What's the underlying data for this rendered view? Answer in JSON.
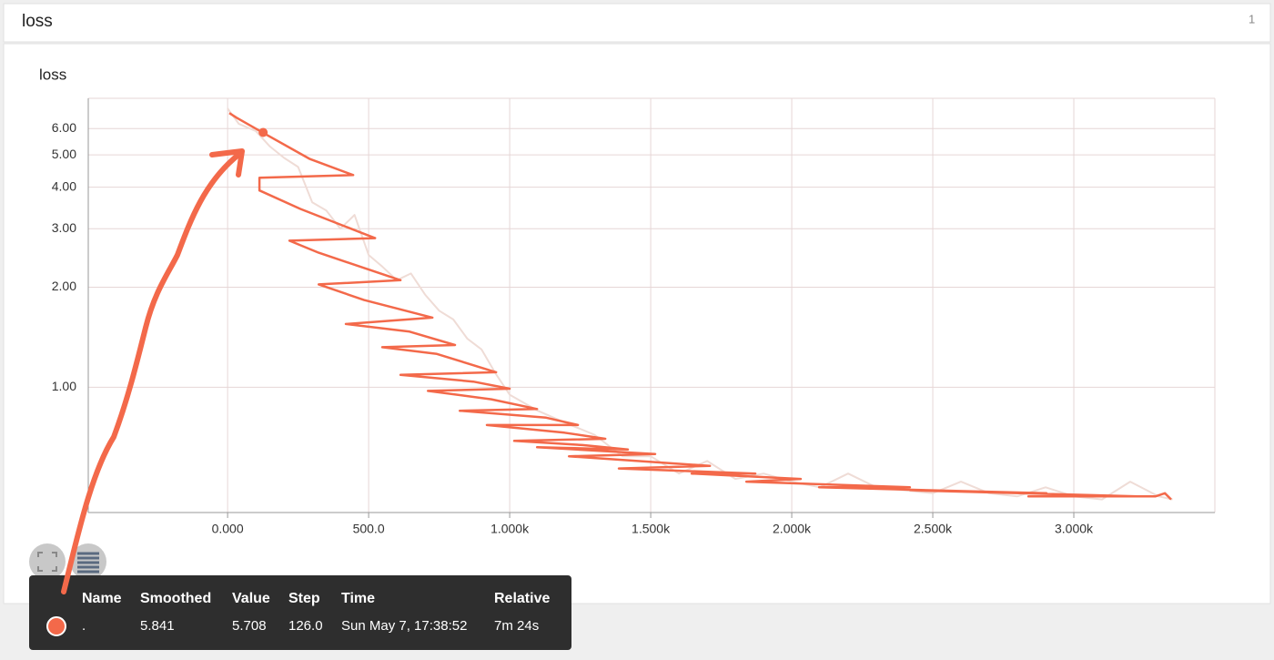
{
  "header": {
    "title": "loss",
    "count": "1"
  },
  "chart_data": {
    "type": "line",
    "title": "loss",
    "log_y": true,
    "grid": true,
    "xlim": [
      -494,
      3500
    ],
    "xticks": [
      {
        "value": 0,
        "label": "0.000"
      },
      {
        "value": 500,
        "label": "500.0"
      },
      {
        "value": 1000,
        "label": "1.000k"
      },
      {
        "value": 1500,
        "label": "1.500k"
      },
      {
        "value": 2000,
        "label": "2.000k"
      },
      {
        "value": 2500,
        "label": "2.500k"
      },
      {
        "value": 3000,
        "label": "3.000k"
      }
    ],
    "ylim": [
      0.42,
      7.4
    ],
    "yticks": [
      {
        "value": 1,
        "label": "1.00"
      },
      {
        "value": 2,
        "label": "2.00"
      },
      {
        "value": 3,
        "label": "3.00"
      },
      {
        "value": 4,
        "label": "4.00"
      },
      {
        "value": 5,
        "label": "5.00"
      },
      {
        "value": 6,
        "label": "6.00"
      }
    ],
    "series": [
      {
        "color": "#efdcd6",
        "x": [
          0,
          40,
          100,
          150,
          200,
          250,
          300,
          350,
          400,
          450,
          500,
          550,
          600,
          650,
          700,
          750,
          800,
          850,
          900,
          950,
          1000,
          1100,
          1200,
          1300,
          1400,
          1500,
          1600,
          1700,
          1800,
          1900,
          2000,
          2100,
          2200,
          2300,
          2400,
          2500,
          2600,
          2700,
          2800,
          2900,
          3000,
          3100,
          3200,
          3300,
          3350
        ],
        "values": [
          6.9,
          6.2,
          5.9,
          5.3,
          4.9,
          4.6,
          3.6,
          3.4,
          3.0,
          3.3,
          2.5,
          2.3,
          2.1,
          2.2,
          1.9,
          1.7,
          1.6,
          1.4,
          1.3,
          1.1,
          0.95,
          0.85,
          0.78,
          0.72,
          0.62,
          0.62,
          0.55,
          0.6,
          0.53,
          0.55,
          0.52,
          0.5,
          0.55,
          0.5,
          0.49,
          0.48,
          0.52,
          0.48,
          0.47,
          0.5,
          0.47,
          0.46,
          0.52,
          0.47,
          0.46
        ]
      },
      {
        "color": "#f3694a",
        "x": [
          6,
          32,
          129,
          290,
          445,
          113,
          113,
          258,
          523,
          219,
          323,
          613,
          323,
          484,
          726,
          419,
          645,
          806,
          548,
          742,
          952,
          613,
          871,
          1000,
          710,
          935,
          1097,
          823,
          1129,
          1242,
          919,
          1194,
          1339,
          1016,
          1258,
          1419,
          1097,
          1516,
          1210,
          1710,
          1387,
          1871,
          1645,
          2032,
          1839,
          2419,
          2097,
          2903,
          2419,
          3226,
          2839,
          3290,
          3323,
          3345
        ],
        "values": [
          6.68,
          6.47,
          5.81,
          4.87,
          4.35,
          4.27,
          3.91,
          3.44,
          2.81,
          2.76,
          2.54,
          2.1,
          2.04,
          1.83,
          1.62,
          1.55,
          1.47,
          1.34,
          1.32,
          1.26,
          1.11,
          1.09,
          1.04,
          0.99,
          0.975,
          0.92,
          0.86,
          0.85,
          0.81,
          0.77,
          0.77,
          0.73,
          0.7,
          0.69,
          0.67,
          0.65,
          0.66,
          0.63,
          0.62,
          0.58,
          0.57,
          0.55,
          0.55,
          0.53,
          0.52,
          0.5,
          0.5,
          0.48,
          0.49,
          0.47,
          0.47,
          0.47,
          0.48,
          0.46
        ]
      }
    ]
  },
  "tooltip": {
    "columns": [
      "Name",
      "Smoothed",
      "Value",
      "Step",
      "Time",
      "Relative"
    ],
    "rows": [
      {
        "name": ".",
        "smoothed": "5.841",
        "value": "5.708",
        "step": "126.0",
        "time": "Sun May 7, 17:38:52",
        "relative": "7m 24s"
      }
    ],
    "smoothed_value": 5.841,
    "step_value": 126
  }
}
